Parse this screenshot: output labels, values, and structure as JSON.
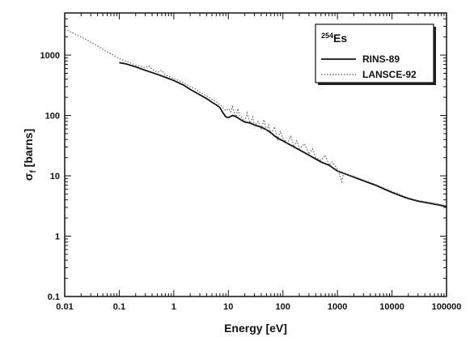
{
  "chart_data": {
    "type": "line",
    "xlabel": "Energy [eV]",
    "ylabel_main": "σ",
    "ylabel_sub": "f",
    "ylabel_unit": " [barns]",
    "x_scale": "log",
    "y_scale": "log",
    "xlim": [
      0.01,
      100000
    ],
    "ylim": [
      0.1,
      5000
    ],
    "x_ticks": [
      {
        "value": 0.01,
        "label": "0.01"
      },
      {
        "value": 0.1,
        "label": "0.1"
      },
      {
        "value": 1,
        "label": "1"
      },
      {
        "value": 10,
        "label": "10"
      },
      {
        "value": 100,
        "label": "100"
      },
      {
        "value": 1000,
        "label": "1000"
      },
      {
        "value": 10000,
        "label": "10000"
      },
      {
        "value": 100000,
        "label": "100000"
      }
    ],
    "y_ticks": [
      {
        "value": 0.1,
        "label": "0.1"
      },
      {
        "value": 1,
        "label": "1"
      },
      {
        "value": 10,
        "label": "10"
      },
      {
        "value": 100,
        "label": "100"
      },
      {
        "value": 1000,
        "label": "1000"
      }
    ],
    "legend": {
      "position": "top-right",
      "title_sup": "254",
      "title": "Es"
    },
    "series": [
      {
        "name": "RINS-89",
        "style": "solid",
        "color": "#111111",
        "points": [
          [
            0.1,
            750
          ],
          [
            0.13,
            720
          ],
          [
            0.2,
            640
          ],
          [
            0.3,
            560
          ],
          [
            0.5,
            480
          ],
          [
            0.7,
            430
          ],
          [
            1,
            380
          ],
          [
            1.5,
            320
          ],
          [
            2,
            270
          ],
          [
            3,
            220
          ],
          [
            4,
            190
          ],
          [
            5,
            165
          ],
          [
            6,
            150
          ],
          [
            7,
            135
          ],
          [
            8,
            110
          ],
          [
            9,
            95
          ],
          [
            10,
            92
          ],
          [
            12,
            100
          ],
          [
            14,
            95
          ],
          [
            16,
            88
          ],
          [
            18,
            82
          ],
          [
            20,
            78
          ],
          [
            25,
            75
          ],
          [
            30,
            70
          ],
          [
            40,
            64
          ],
          [
            50,
            58
          ],
          [
            60,
            52
          ],
          [
            70,
            46
          ],
          [
            80,
            42
          ],
          [
            100,
            38
          ],
          [
            150,
            31
          ],
          [
            200,
            27
          ],
          [
            300,
            22
          ],
          [
            400,
            19
          ],
          [
            500,
            17
          ],
          [
            700,
            15
          ],
          [
            1000,
            12
          ],
          [
            1500,
            10.5
          ],
          [
            2000,
            9.5
          ],
          [
            3000,
            8.3
          ],
          [
            5000,
            7
          ],
          [
            7000,
            6.1
          ],
          [
            10000,
            5.3
          ],
          [
            15000,
            4.6
          ],
          [
            20000,
            4.2
          ],
          [
            30000,
            3.8
          ],
          [
            50000,
            3.5
          ],
          [
            70000,
            3.3
          ],
          [
            100000,
            3.1
          ]
        ]
      },
      {
        "name": "LANSCE-92",
        "style": "dotted",
        "color": "#555555",
        "points": [
          [
            0.01,
            2700
          ],
          [
            0.02,
            2000
          ],
          [
            0.03,
            1650
          ],
          [
            0.05,
            1250
          ],
          [
            0.07,
            1050
          ],
          [
            0.1,
            880
          ],
          [
            0.15,
            760
          ],
          [
            0.2,
            690
          ],
          [
            0.3,
            620
          ],
          [
            0.35,
            660
          ],
          [
            0.4,
            580
          ],
          [
            0.5,
            520
          ],
          [
            0.6,
            560
          ],
          [
            0.7,
            470
          ],
          [
            1,
            410
          ],
          [
            1.5,
            350
          ],
          [
            2,
            300
          ],
          [
            2.5,
            275
          ],
          [
            3,
            245
          ],
          [
            4,
            210
          ],
          [
            5,
            185
          ],
          [
            6,
            170
          ],
          [
            7,
            150
          ],
          [
            8,
            135
          ],
          [
            9,
            120
          ],
          [
            10,
            130
          ],
          [
            11,
            115
          ],
          [
            12,
            140
          ],
          [
            13,
            105
          ],
          [
            14,
            95
          ],
          [
            15,
            130
          ],
          [
            16,
            100
          ],
          [
            18,
            90
          ],
          [
            20,
            80
          ],
          [
            22,
            110
          ],
          [
            25,
            75
          ],
          [
            28,
            95
          ],
          [
            30,
            68
          ],
          [
            35,
            80
          ],
          [
            40,
            60
          ],
          [
            45,
            85
          ],
          [
            50,
            55
          ],
          [
            55,
            70
          ],
          [
            60,
            48
          ],
          [
            70,
            65
          ],
          [
            80,
            40
          ],
          [
            90,
            55
          ],
          [
            100,
            42
          ],
          [
            120,
            35
          ],
          [
            140,
            45
          ],
          [
            160,
            30
          ],
          [
            180,
            38
          ],
          [
            200,
            28
          ],
          [
            250,
            34
          ],
          [
            300,
            23
          ],
          [
            350,
            28
          ],
          [
            400,
            20
          ],
          [
            500,
            18
          ],
          [
            600,
            22
          ],
          [
            700,
            15
          ],
          [
            800,
            17
          ],
          [
            1000,
            13
          ],
          [
            1200,
            8
          ],
          [
            1300,
            11
          ],
          [
            1500,
            10.5
          ],
          [
            2000,
            9.8
          ],
          [
            3000,
            8.5
          ],
          [
            5000,
            7.2
          ],
          [
            7000,
            6.3
          ],
          [
            10000,
            5.5
          ],
          [
            15000,
            4.8
          ],
          [
            20000,
            4.3
          ],
          [
            30000,
            3.9
          ],
          [
            50000,
            3.6
          ],
          [
            70000,
            3.4
          ],
          [
            100000,
            3.2
          ]
        ]
      }
    ]
  }
}
